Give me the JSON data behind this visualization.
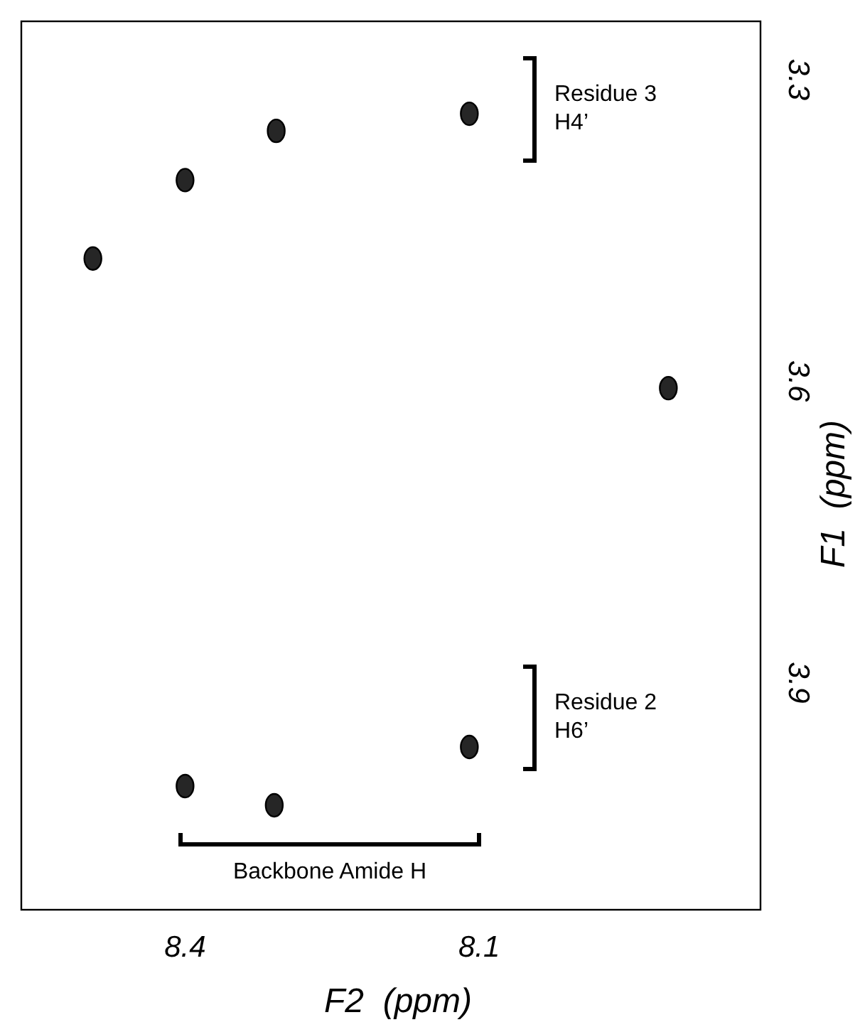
{
  "chart_data": {
    "type": "scatter",
    "xlabel": "F2  (ppm)",
    "ylabel": "F1  (ppm)",
    "x": [
      8.4,
      8.307,
      8.11,
      8.11,
      8.4,
      8.309,
      8.494,
      7.907
    ],
    "values": [
      3.4,
      3.351,
      3.334,
      3.964,
      4.003,
      4.022,
      3.478,
      3.607
    ],
    "color": "#000000",
    "marker": "circle",
    "xlim": [
      8.567,
      7.813
    ],
    "ylim": [
      4.126,
      3.242
    ],
    "xticks": [
      8.4,
      8.1
    ],
    "yticks": [
      3.3,
      3.6,
      3.9
    ],
    "grid": false,
    "annotations": [
      "Residue 3 H4’",
      "Residue 2 H6’",
      "Backbone Amide H"
    ]
  }
}
